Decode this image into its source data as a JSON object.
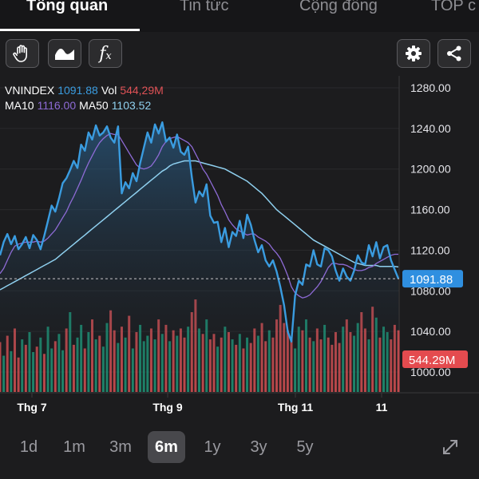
{
  "tabs": [
    {
      "label": "Tổng quan",
      "active": true
    },
    {
      "label": "Tin tức",
      "active": false
    },
    {
      "label": "Cộng đồng",
      "active": false
    },
    {
      "label": "TOP c",
      "active": false
    }
  ],
  "toolbar": {
    "left_icons": [
      "hand-gesture-icon",
      "chart-style-icon",
      "function-fx-icon"
    ],
    "fx_label": "f",
    "fx_sub": "x",
    "right_icons": [
      "gear-icon",
      "share-icon"
    ]
  },
  "legend": {
    "symbol": "VNINDEX",
    "price": "1091.88",
    "vol_label": "Vol",
    "vol_value": "544,29M",
    "ma10_label": "MA10",
    "ma10_value": "1116.00",
    "ma50_label": "MA50",
    "ma50_value": "1103.52"
  },
  "colors": {
    "price_line": "#3a9ce0",
    "ma10": "#8e6bd6",
    "ma50": "#8fd0ef",
    "vol_up": "#1f9c7d",
    "vol_down": "#e05256",
    "price_tag": "#2f8fe0",
    "vol_tag": "#e44b4f",
    "background": "#1c1c1e"
  },
  "chart_data": {
    "type": "line",
    "ylim": [
      1000,
      1280
    ],
    "y_ticks": [
      "1280.00",
      "1240.00",
      "1200.00",
      "1160.00",
      "1120.00",
      "1080.00",
      "1040.00",
      "1000.00"
    ],
    "x_ticks": [
      "Thg 7",
      "Thg 9",
      "Thg 11",
      "11"
    ],
    "current_price_label": "1091.88",
    "current_volume_label": "544.29M",
    "series": [
      {
        "values": [
          1115,
          1128,
          1136,
          1126,
          1134,
          1121,
          1126,
          1133,
          1122,
          1135,
          1130,
          1121,
          1134,
          1149,
          1164,
          1158,
          1171,
          1186,
          1191,
          1199,
          1208,
          1201,
          1224,
          1218,
          1236,
          1229,
          1243,
          1233,
          1236,
          1242,
          1231,
          1226,
          1242,
          1176,
          1187,
          1181,
          1196,
          1188,
          1206,
          1221,
          1236,
          1226,
          1244,
          1235,
          1246,
          1227,
          1231,
          1221,
          1234,
          1217,
          1214,
          1222,
          1192,
          1167,
          1178,
          1173,
          1185,
          1154,
          1147,
          1148,
          1128,
          1142,
          1123,
          1138,
          1134,
          1149,
          1132,
          1155,
          1145,
          1130,
          1118,
          1125,
          1110,
          1104,
          1110,
          1099,
          1084,
          1066,
          1040,
          1030,
          1075,
          1090,
          1086,
          1106,
          1104,
          1120,
          1106,
          1104,
          1122,
          1120,
          1114,
          1100,
          1090,
          1102,
          1094,
          1090,
          1100,
          1115,
          1108,
          1106,
          1125,
          1114,
          1128,
          1112,
          1123,
          1125,
          1110,
          1101,
          1092
        ]
      },
      {
        "name": "MA10",
        "values": [
          1097,
          1102,
          1110,
          1118,
          1124,
          1126,
          1127,
          1128,
          1128,
          1128,
          1129,
          1128,
          1129,
          1132,
          1136,
          1140,
          1146,
          1152,
          1158,
          1166,
          1173,
          1181,
          1189,
          1198,
          1206,
          1213,
          1220,
          1226,
          1230,
          1233,
          1235,
          1234,
          1234,
          1228,
          1222,
          1216,
          1210,
          1204,
          1201,
          1200,
          1201,
          1203,
          1208,
          1214,
          1222,
          1227,
          1230,
          1231,
          1232,
          1230,
          1228,
          1226,
          1222,
          1215,
          1208,
          1200,
          1195,
          1188,
          1181,
          1174,
          1165,
          1158,
          1150,
          1145,
          1141,
          1139,
          1137,
          1135,
          1136,
          1136,
          1133,
          1131,
          1129,
          1126,
          1121,
          1117,
          1112,
          1104,
          1095,
          1084,
          1078,
          1075,
          1073,
          1074,
          1076,
          1080,
          1084,
          1089,
          1096,
          1103,
          1107,
          1107,
          1106,
          1106,
          1105,
          1103,
          1101,
          1100,
          1100,
          1101,
          1103,
          1104,
          1107,
          1109,
          1111,
          1113,
          1115,
          1116,
          1116
        ]
      },
      {
        "name": "MA50",
        "values": [
          1081,
          1083,
          1085,
          1087,
          1089,
          1091,
          1093,
          1095,
          1097,
          1099,
          1101,
          1103,
          1105,
          1107,
          1109,
          1111,
          1114,
          1117,
          1120,
          1123,
          1126,
          1129,
          1132,
          1135,
          1138,
          1141,
          1144,
          1147,
          1150,
          1153,
          1156,
          1159,
          1162,
          1165,
          1168,
          1171,
          1174,
          1177,
          1180,
          1183,
          1186,
          1189,
          1192,
          1195,
          1198,
          1200,
          1203,
          1205,
          1206,
          1207,
          1208,
          1208,
          1208,
          1208,
          1207,
          1206,
          1205,
          1204,
          1203,
          1202,
          1201,
          1200,
          1198,
          1196,
          1194,
          1192,
          1190,
          1188,
          1185,
          1182,
          1179,
          1176,
          1172,
          1168,
          1164,
          1160,
          1157,
          1154,
          1151,
          1148,
          1145,
          1142,
          1139,
          1136,
          1133,
          1130,
          1128,
          1126,
          1124,
          1122,
          1120,
          1118,
          1116,
          1114,
          1112,
          1110,
          1108,
          1107,
          1106,
          1105,
          1105,
          1105,
          1105,
          1104,
          1104,
          1104,
          1104,
          1104,
          1103.52
        ]
      }
    ],
    "volume": {
      "values": [
        55,
        40,
        62,
        45,
        70,
        38,
        58,
        52,
        66,
        44,
        50,
        60,
        42,
        72,
        48,
        56,
        64,
        46,
        70,
        88,
        52,
        60,
        74,
        48,
        66,
        80,
        58,
        62,
        50,
        76,
        90,
        68,
        54,
        72,
        60,
        84,
        48,
        66,
        74,
        56,
        62,
        70,
        58,
        80,
        64,
        74,
        56,
        68,
        62,
        70,
        60,
        72,
        88,
        102,
        70,
        64,
        80,
        58,
        64,
        50,
        60,
        72,
        66,
        58,
        52,
        64,
        48,
        60,
        54,
        70,
        62,
        76,
        56,
        68,
        60,
        80,
        96,
        76,
        68,
        58,
        48,
        72,
        68,
        80,
        60,
        56,
        70,
        58,
        74,
        60,
        52,
        66,
        54,
        72,
        80,
        66,
        62,
        76,
        88,
        70,
        58,
        94,
        82,
        60,
        72,
        66,
        58,
        74,
        68
      ],
      "directions": [
        "d",
        "u",
        "d",
        "u",
        "d",
        "d",
        "u",
        "d",
        "u",
        "u",
        "d",
        "u",
        "d",
        "u",
        "u",
        "d",
        "u",
        "u",
        "d",
        "u",
        "d",
        "u",
        "u",
        "d",
        "u",
        "d",
        "u",
        "d",
        "u",
        "u",
        "d",
        "d",
        "u",
        "d",
        "u",
        "d",
        "u",
        "d",
        "u",
        "u",
        "u",
        "d",
        "u",
        "d",
        "u",
        "d",
        "u",
        "d",
        "u",
        "d",
        "d",
        "u",
        "d",
        "d",
        "u",
        "d",
        "u",
        "d",
        "d",
        "u",
        "d",
        "u",
        "d",
        "u",
        "d",
        "u",
        "d",
        "u",
        "d",
        "d",
        "u",
        "d",
        "d",
        "u",
        "d",
        "d",
        "d",
        "d",
        "d",
        "d",
        "u",
        "u",
        "d",
        "u",
        "d",
        "u",
        "d",
        "d",
        "u",
        "d",
        "d",
        "d",
        "d",
        "u",
        "d",
        "d",
        "u",
        "u",
        "d",
        "d",
        "u",
        "d",
        "u",
        "d",
        "u",
        "u",
        "d",
        "d",
        "d"
      ]
    }
  },
  "range_buttons": [
    {
      "label": "1d",
      "active": false
    },
    {
      "label": "1m",
      "active": false
    },
    {
      "label": "3m",
      "active": false
    },
    {
      "label": "6m",
      "active": true
    },
    {
      "label": "1y",
      "active": false
    },
    {
      "label": "3y",
      "active": false
    },
    {
      "label": "5y",
      "active": false
    }
  ],
  "expand_icon": "expand-arrows-icon"
}
